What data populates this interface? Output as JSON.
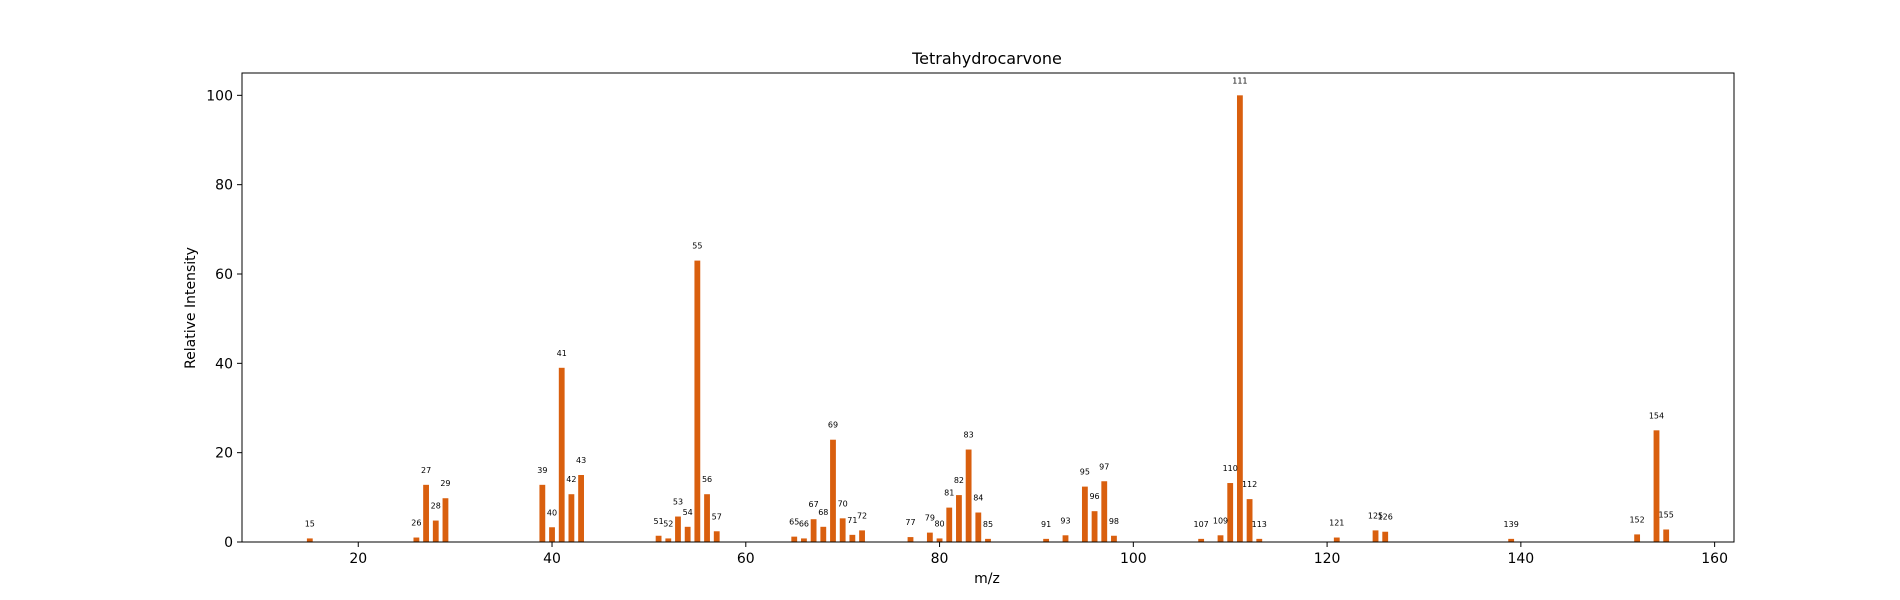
{
  "chart_data": {
    "type": "bar",
    "title": "Tetrahydrocarvone",
    "xlabel": "m/z",
    "ylabel": "Relative Intensity",
    "xlim": [
      8,
      162
    ],
    "ylim": [
      0,
      105
    ],
    "xticks": [
      20,
      40,
      60,
      80,
      100,
      120,
      140,
      160
    ],
    "yticks": [
      0,
      20,
      40,
      60,
      80,
      100
    ],
    "grid": false,
    "bar_color": "#d95f0e",
    "x": [
      15,
      26,
      27,
      28,
      29,
      39,
      40,
      41,
      42,
      43,
      51,
      52,
      53,
      54,
      55,
      56,
      57,
      65,
      66,
      67,
      68,
      69,
      70,
      71,
      72,
      77,
      79,
      80,
      81,
      82,
      83,
      84,
      85,
      91,
      93,
      95,
      96,
      97,
      98,
      107,
      109,
      110,
      111,
      112,
      113,
      121,
      125,
      126,
      139,
      152,
      154,
      155
    ],
    "values": [
      0.8,
      1.0,
      12.8,
      4.8,
      9.8,
      12.8,
      3.3,
      39.0,
      10.7,
      15.0,
      1.4,
      0.8,
      5.7,
      3.4,
      63.0,
      10.7,
      2.4,
      1.2,
      0.8,
      5.1,
      3.4,
      22.9,
      5.3,
      1.6,
      2.6,
      1.1,
      2.1,
      0.8,
      7.7,
      10.5,
      20.7,
      6.6,
      0.7,
      0.7,
      1.5,
      12.4,
      6.9,
      13.6,
      1.4,
      0.7,
      1.5,
      13.2,
      100.0,
      9.6,
      0.7,
      1.0,
      2.6,
      2.3,
      0.7,
      1.7,
      25.0,
      2.8
    ]
  }
}
